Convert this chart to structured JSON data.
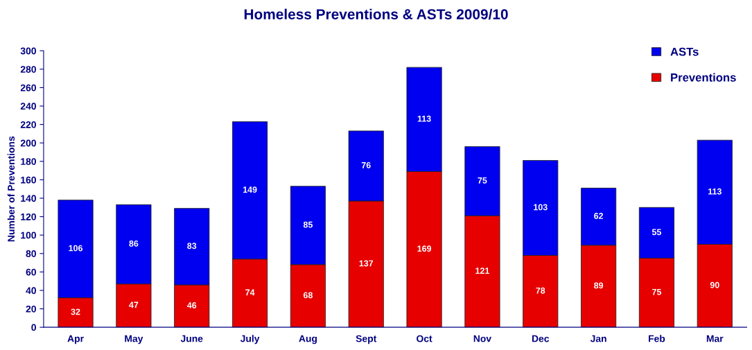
{
  "chart_data": {
    "type": "bar",
    "title": "Homeless Preventions & ASTs 2009/10",
    "ylabel": "Number of Preventions",
    "categories": [
      "Apr",
      "May",
      "June",
      "July",
      "Aug",
      "Sept",
      "Oct",
      "Nov",
      "Dec",
      "Jan",
      "Feb",
      "Mar"
    ],
    "series": [
      {
        "name": "Preventions",
        "color": "#e60000",
        "values": [
          32,
          47,
          46,
          74,
          68,
          137,
          169,
          121,
          78,
          89,
          75,
          90
        ]
      },
      {
        "name": "ASTs",
        "color": "#0000f0",
        "values": [
          106,
          86,
          83,
          149,
          85,
          76,
          113,
          75,
          103,
          62,
          55,
          113
        ]
      }
    ],
    "stacked": true,
    "ylim": [
      0,
      300
    ],
    "yticks": [
      0,
      20,
      40,
      60,
      80,
      100,
      120,
      140,
      160,
      180,
      200,
      220,
      240,
      260,
      280,
      300
    ],
    "data_labels": true,
    "grid": false,
    "legend": "top right"
  }
}
